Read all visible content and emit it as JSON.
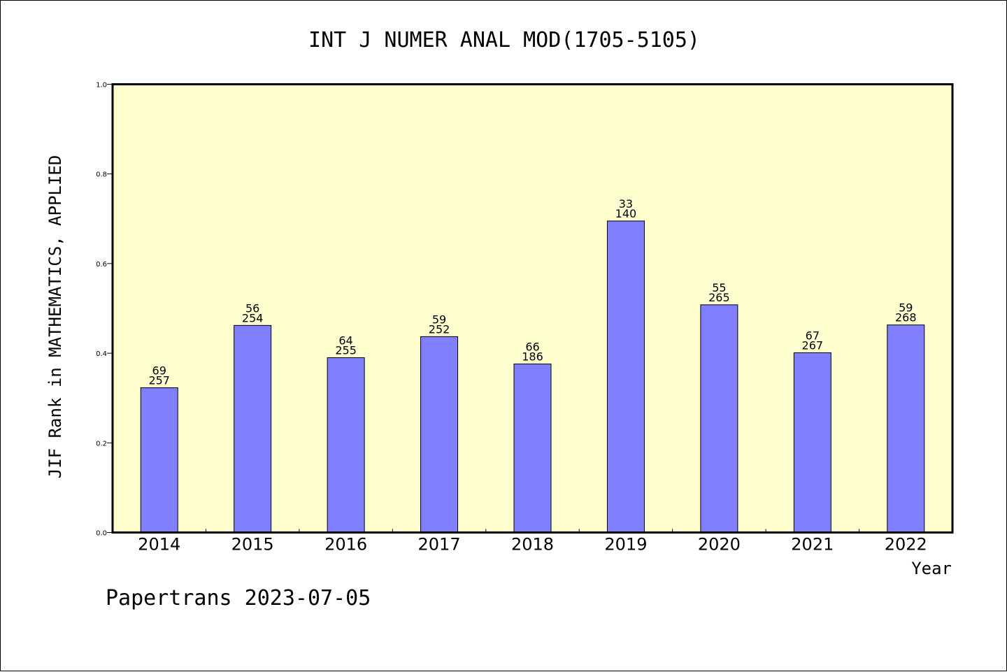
{
  "chart_data": {
    "type": "bar",
    "title": "INT J NUMER ANAL MOD(1705-5105)",
    "xlabel": "Year",
    "ylabel": "JIF Rank in MATHEMATICS, APPLIED",
    "ylim": [
      0.0,
      1.0
    ],
    "yticks": [
      "0.0",
      "0.2",
      "0.4",
      "0.6",
      "0.8",
      "1.0"
    ],
    "categories": [
      "2014",
      "2015",
      "2016",
      "2017",
      "2018",
      "2019",
      "2020",
      "2021",
      "2022"
    ],
    "values": [
      0.323,
      0.462,
      0.39,
      0.437,
      0.376,
      0.695,
      0.508,
      0.401,
      0.463
    ],
    "rank_labels": [
      "69",
      "56",
      "64",
      "59",
      "66",
      "33",
      "55",
      "67",
      "59"
    ],
    "total_labels": [
      "257",
      "254",
      "255",
      "252",
      "186",
      "140",
      "265",
      "267",
      "268"
    ],
    "grid": false,
    "legend": "none",
    "colors": {
      "bar": "#8080ff",
      "plot_background": "#ffffd0",
      "axis": "#000000"
    }
  },
  "footer": {
    "text": "Papertrans 2023-07-05"
  }
}
